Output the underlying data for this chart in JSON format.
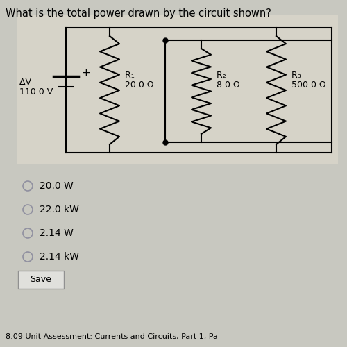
{
  "title": "What is the total power drawn by the circuit shown?",
  "bg_color": "#c8c8c0",
  "voltage_label_line1": "ΔV =",
  "voltage_label_line2": "110.0 V",
  "r1_label_line1": "R₁ =",
  "r1_label_line2": "20.0 Ω",
  "r2_label_line1": "R₂ =",
  "r2_label_line2": "8.0 Ω",
  "r3_label_line1": "R₃ =",
  "r3_label_line2": "500.0 Ω",
  "options": [
    "20.0 W",
    "22.0 kW",
    "2.14 W",
    "2.14 kW"
  ],
  "save_btn": "Save",
  "footer": "8.09 Unit Assessment: Currents and Circuits, Part 1, Pa",
  "title_fontsize": 10.5,
  "option_fontsize": 10,
  "wire_color": "#000000",
  "dot_color": "#000000"
}
